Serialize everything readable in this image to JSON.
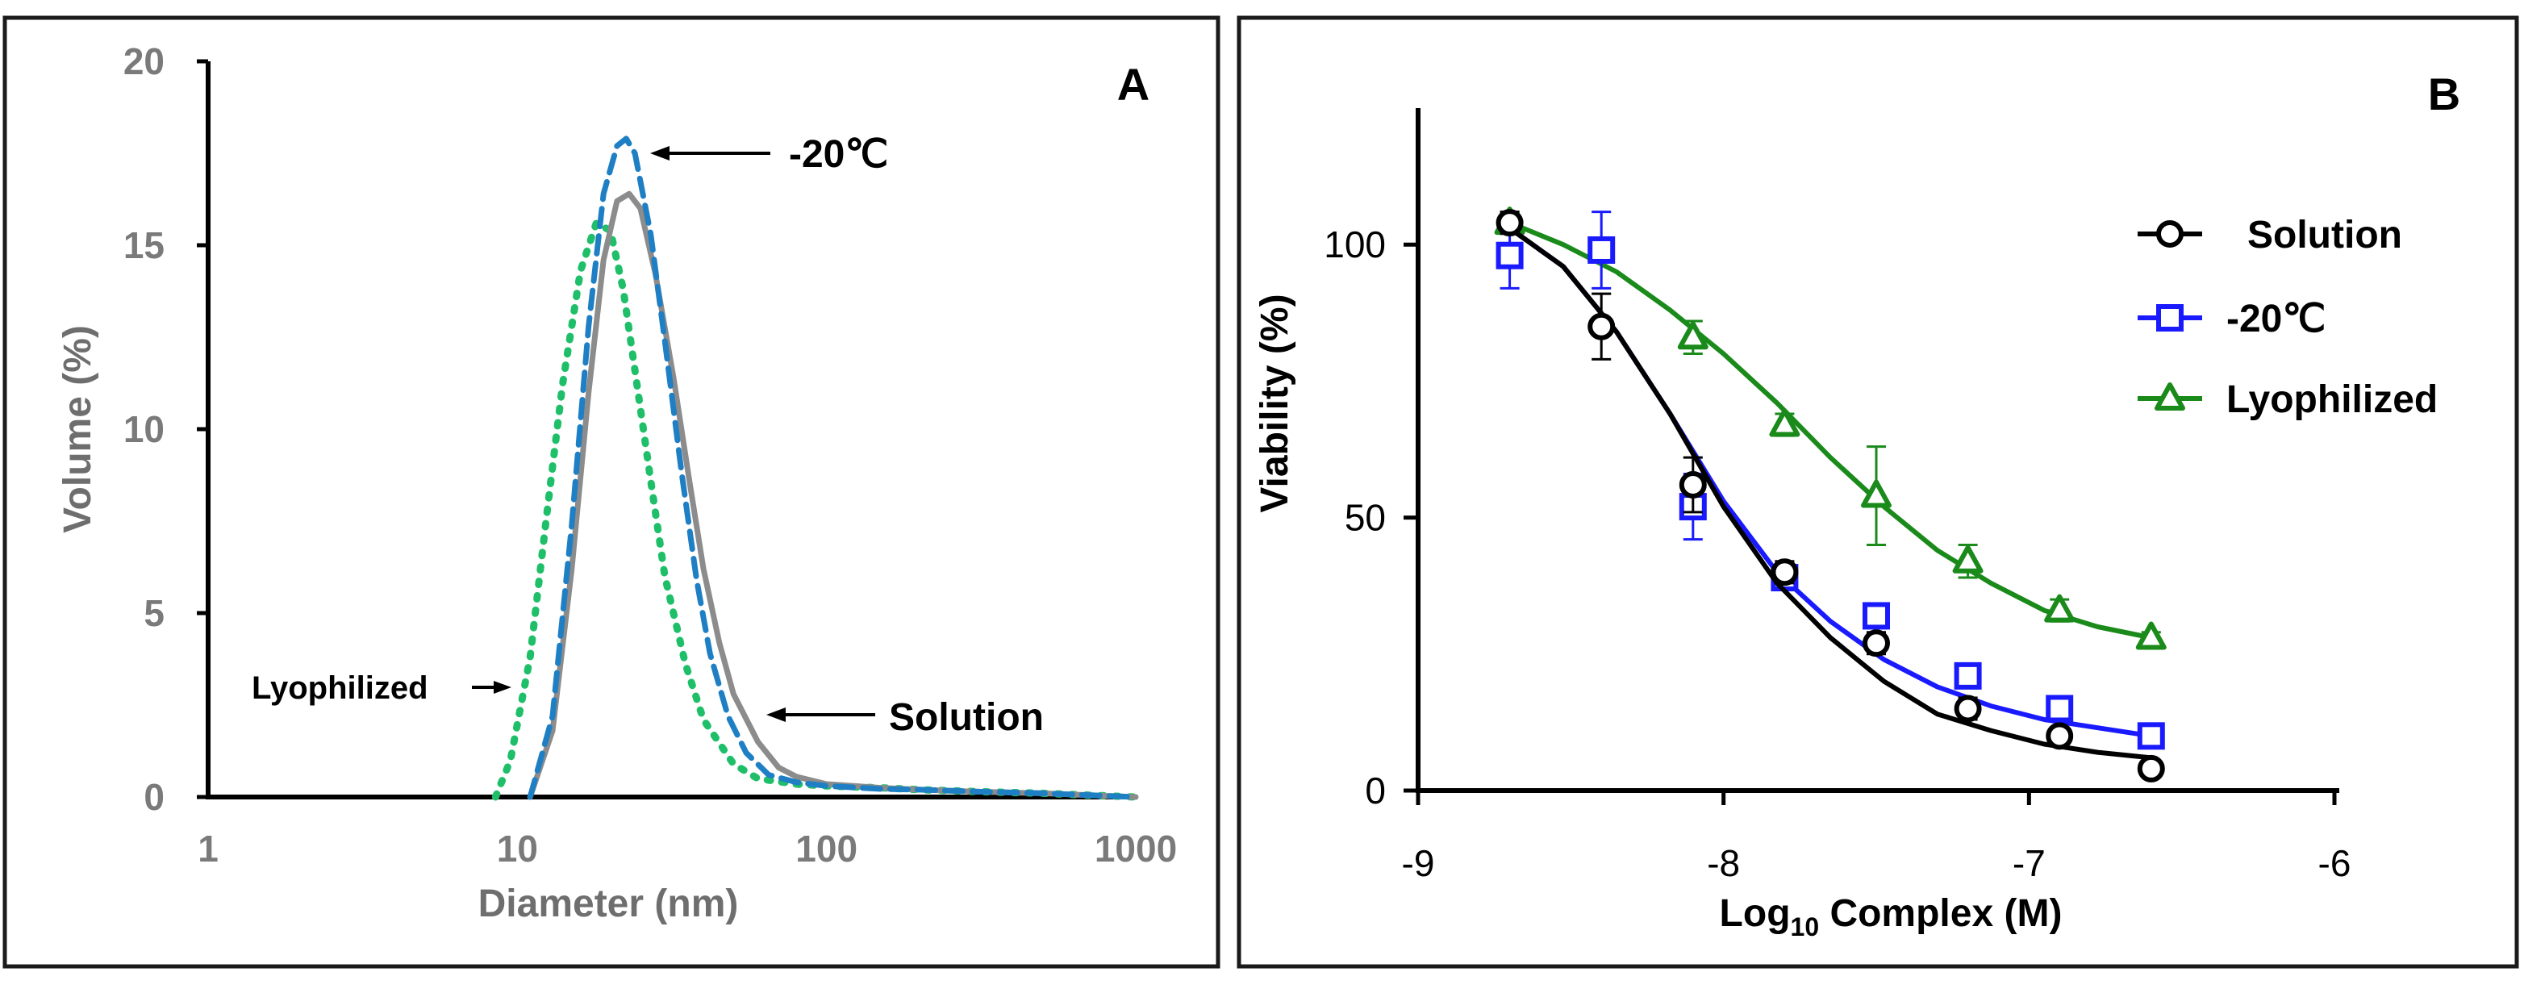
{
  "chart_data": [
    {
      "panel_label": "A",
      "type": "line",
      "xscale": "log",
      "xlabel": "Diameter (nm)",
      "ylabel": "Volume (%)",
      "xlim": [
        1,
        1000
      ],
      "ylim": [
        0,
        20
      ],
      "xticks": [
        "1",
        "10",
        "100",
        "1000"
      ],
      "yticks": [
        "0",
        "5",
        "10",
        "15",
        "20"
      ],
      "series": [
        {
          "name": "Solution",
          "color": "#8c8c8c",
          "style": "solid",
          "x": [
            11,
            13,
            15,
            17,
            19,
            21,
            23,
            25,
            28,
            32,
            36,
            40,
            45,
            50,
            60,
            70,
            80,
            100,
            150,
            200,
            300,
            500,
            1000
          ],
          "y": [
            0,
            1.8,
            6.2,
            11.0,
            14.6,
            16.2,
            16.4,
            16.0,
            14.2,
            11.4,
            8.6,
            6.2,
            4.2,
            2.8,
            1.5,
            0.8,
            0.55,
            0.35,
            0.25,
            0.2,
            0.15,
            0.1,
            0
          ]
        },
        {
          "name": "-20°C",
          "color": "#1f7fc4",
          "style": "dashed",
          "x": [
            11,
            13,
            15,
            17,
            19,
            21,
            22.5,
            24,
            27,
            30,
            34,
            38,
            42,
            48,
            55,
            65,
            80,
            100,
            150,
            200,
            300,
            500,
            1000
          ],
          "y": [
            0,
            2.2,
            7.4,
            12.8,
            16.4,
            17.7,
            17.9,
            17.5,
            15.3,
            12.4,
            8.8,
            5.9,
            3.9,
            2.2,
            1.2,
            0.6,
            0.4,
            0.3,
            0.22,
            0.2,
            0.15,
            0.1,
            0
          ]
        },
        {
          "name": "Lyophilized",
          "color": "#1fbf6a",
          "style": "dotted",
          "x": [
            8.5,
            9.5,
            11,
            12.5,
            14,
            16,
            18,
            20,
            22,
            24,
            27,
            30,
            35,
            40,
            50,
            60,
            80,
            100,
            150,
            200,
            300,
            500,
            1000
          ],
          "y": [
            0,
            1.0,
            3.8,
            7.8,
            11.2,
            14.3,
            15.6,
            15.4,
            13.8,
            11.6,
            8.6,
            6.0,
            3.6,
            2.1,
            0.9,
            0.5,
            0.35,
            0.3,
            0.25,
            0.2,
            0.15,
            0.1,
            0
          ]
        }
      ],
      "annotations": [
        "-20℃",
        "Solution",
        "Lyophilized"
      ]
    },
    {
      "panel_label": "B",
      "type": "scatter",
      "xlabel_main": "Log",
      "xlabel_sub": "10",
      "xlabel_tail": " Complex (M)",
      "ylabel": "Viability (%)",
      "xlim": [
        -9,
        -6
      ],
      "ylim": [
        0,
        125
      ],
      "xticks": [
        "-9",
        "-8",
        "-7",
        "-6"
      ],
      "yticks": [
        "0",
        "50",
        "100"
      ],
      "series": [
        {
          "name": "Solution",
          "color": "#000000",
          "marker": "circle",
          "x": [
            -8.7,
            -8.4,
            -8.1,
            -7.8,
            -7.5,
            -7.2,
            -6.9,
            -6.6
          ],
          "y": [
            104,
            85,
            56,
            40,
            27,
            15,
            10,
            4
          ],
          "err": [
            2,
            6,
            5,
            2,
            2,
            2,
            1,
            1
          ],
          "fit": [
            103,
            96,
            84,
            69,
            52,
            38,
            28,
            20,
            14,
            11,
            8.5,
            7,
            6
          ]
        },
        {
          "name": "-20℃",
          "color": "#1a1aff",
          "marker": "square",
          "x": [
            -8.7,
            -8.4,
            -8.1,
            -7.8,
            -7.5,
            -7.2,
            -6.9,
            -6.6
          ],
          "y": [
            98,
            99,
            52,
            39,
            32,
            21,
            15,
            10
          ],
          "err": [
            6,
            7,
            6,
            2,
            2,
            2,
            1,
            1
          ],
          "fit": [
            103,
            96,
            84,
            69,
            53,
            40,
            31,
            24,
            19,
            15.5,
            13,
            11.5,
            10
          ]
        },
        {
          "name": "Lyophilized",
          "color": "#1a8a1a",
          "marker": "triangle",
          "x": [
            -8.7,
            -8.1,
            -7.8,
            -7.5,
            -7.2,
            -6.9,
            -6.6
          ],
          "y": [
            104,
            83,
            67,
            54,
            42,
            33,
            28
          ],
          "err": [
            2,
            3,
            2,
            9,
            3,
            2,
            1
          ],
          "fit": [
            104,
            100,
            95,
            88,
            80,
            71,
            61,
            52,
            44,
            38,
            33,
            30,
            28
          ]
        }
      ],
      "fit_x": [
        -8.7,
        -8.525,
        -8.35,
        -8.175,
        -8.0,
        -7.825,
        -7.65,
        -7.475,
        -7.3,
        -7.125,
        -6.95,
        -6.775,
        -6.6
      ]
    }
  ]
}
